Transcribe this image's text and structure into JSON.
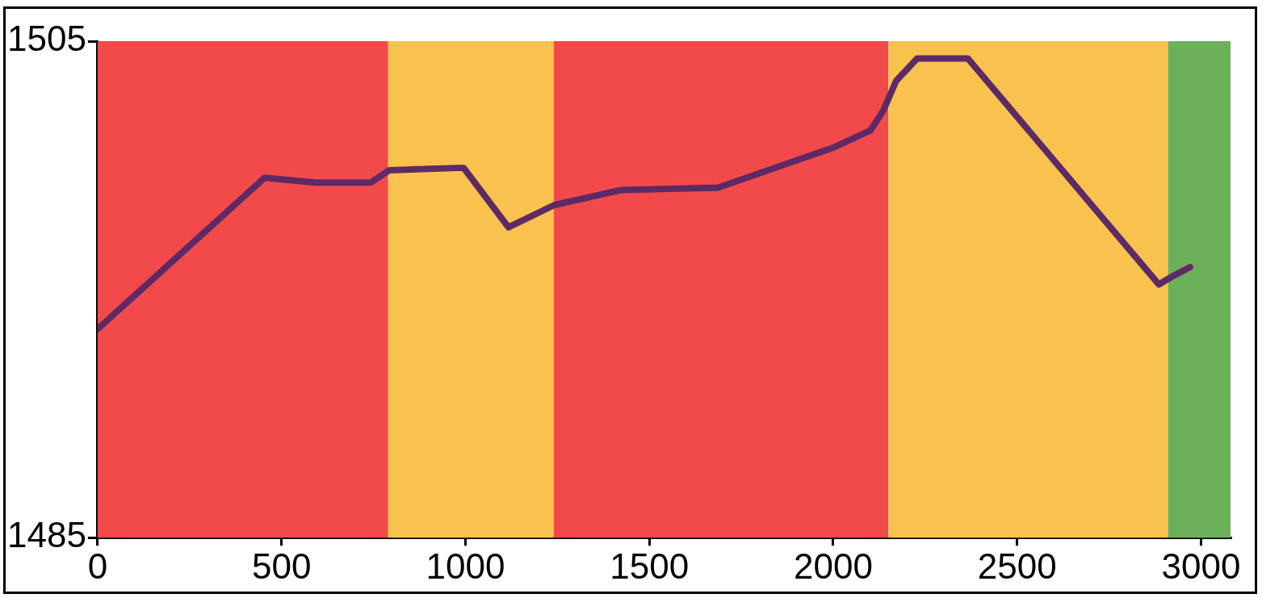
{
  "chart_data": {
    "type": "line",
    "x": [
      0,
      454,
      592,
      742,
      793,
      995,
      1117,
      1242,
      1422,
      1687,
      1998,
      2101,
      2136,
      2171,
      2228,
      2366,
      2885,
      2919,
      2970
    ],
    "series": [
      {
        "color": "#5e2a66",
        "values": [
          1493.4,
          1499.5,
          1499.3,
          1499.3,
          1499.8,
          1499.9,
          1497.5,
          1498.4,
          1499.0,
          1499.1,
          1500.7,
          1501.4,
          1502.2,
          1503.4,
          1504.3,
          1504.3,
          1495.2,
          1495.5,
          1495.9
        ]
      }
    ],
    "xlim": [
      0,
      3080
    ],
    "xticks": [
      0,
      500,
      1000,
      1500,
      2000,
      2500,
      3000
    ],
    "ylim": [
      1485,
      1505
    ],
    "yticks": [
      1485,
      1505
    ],
    "grid": false,
    "legend": false,
    "marker": "none",
    "line_style": "solid",
    "bands": [
      {
        "axis": "x",
        "from": 0,
        "to": 790,
        "color": "#f24a4a"
      },
      {
        "axis": "x",
        "from": 790,
        "to": 1240,
        "color": "#f9c24e"
      },
      {
        "axis": "x",
        "from": 1240,
        "to": 2150,
        "color": "#f24a4a"
      },
      {
        "axis": "x",
        "from": 2150,
        "to": 2910,
        "color": "#f9c24e"
      },
      {
        "axis": "x",
        "from": 2910,
        "to": 3080,
        "color": "#6cb15a"
      }
    ]
  }
}
